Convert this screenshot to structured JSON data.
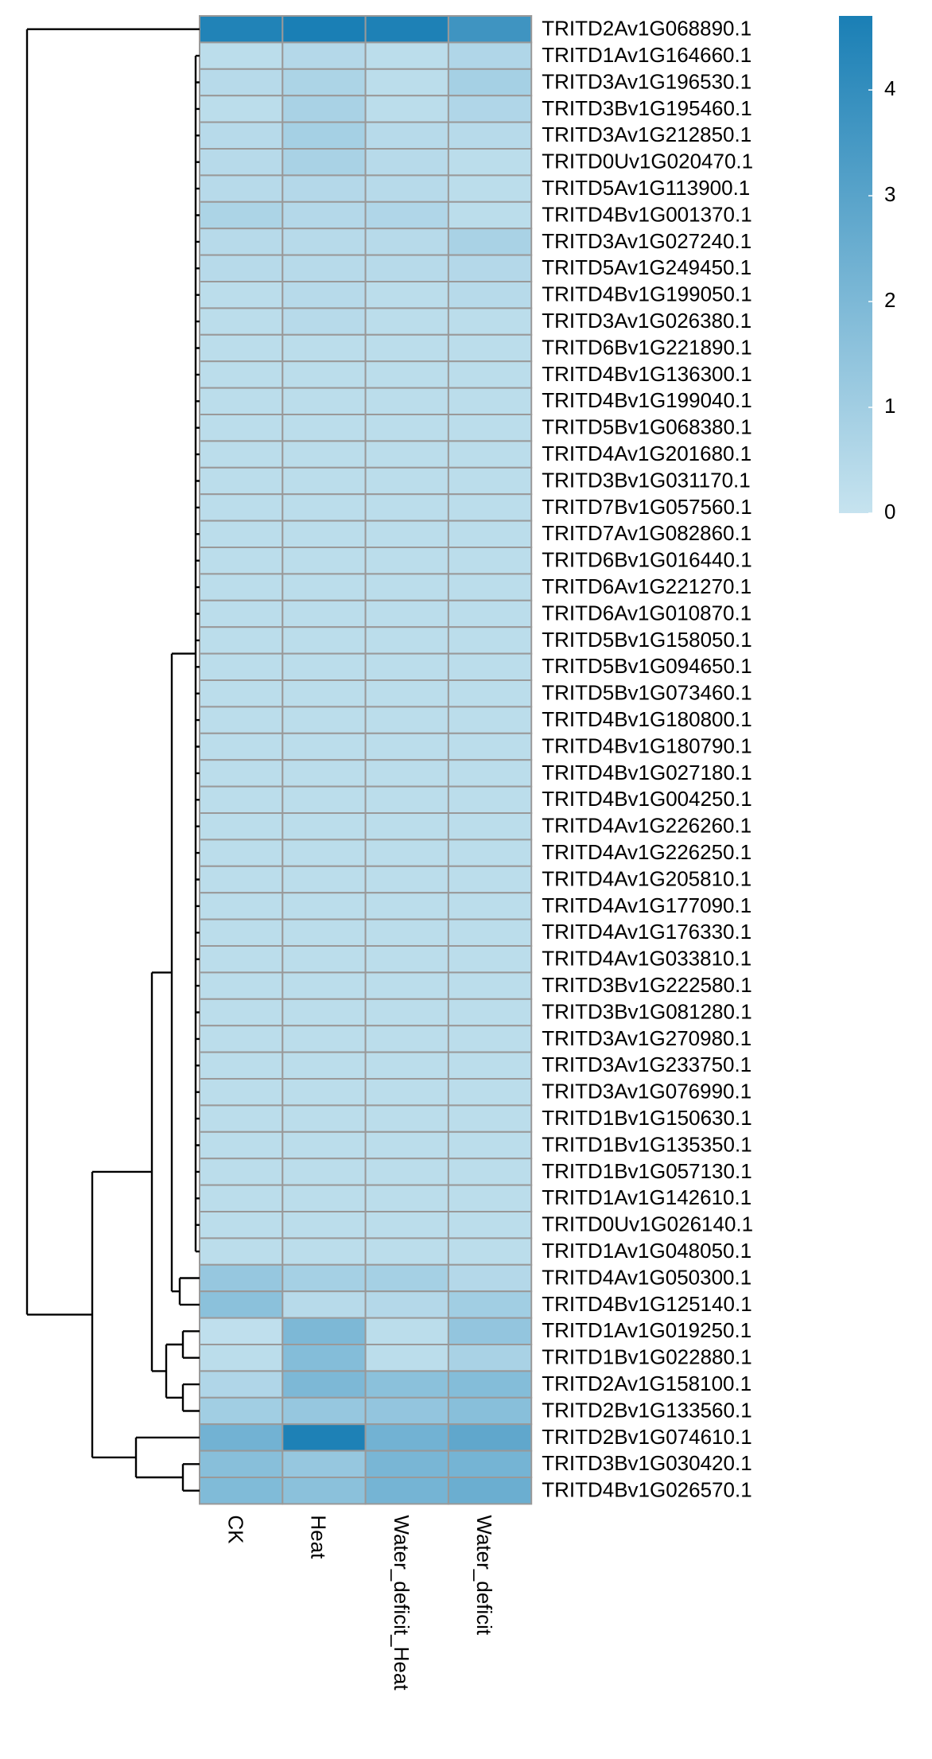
{
  "chart_data": {
    "type": "heatmap",
    "columns": [
      "CK",
      "Heat",
      "Water_deficit_Heat",
      "Water_deficit"
    ],
    "rows": [
      "TRITD2Av1G068890.1",
      "TRITD1Av1G164660.1",
      "TRITD3Av1G196530.1",
      "TRITD3Bv1G195460.1",
      "TRITD3Av1G212850.1",
      "TRITD0Uv1G020470.1",
      "TRITD5Av1G113900.1",
      "TRITD4Bv1G001370.1",
      "TRITD3Av1G027240.1",
      "TRITD5Av1G249450.1",
      "TRITD4Bv1G199050.1",
      "TRITD3Av1G026380.1",
      "TRITD6Bv1G221890.1",
      "TRITD4Bv1G136300.1",
      "TRITD4Bv1G199040.1",
      "TRITD5Bv1G068380.1",
      "TRITD4Av1G201680.1",
      "TRITD3Bv1G031170.1",
      "TRITD7Bv1G057560.1",
      "TRITD7Av1G082860.1",
      "TRITD6Bv1G016440.1",
      "TRITD6Av1G221270.1",
      "TRITD6Av1G010870.1",
      "TRITD5Bv1G158050.1",
      "TRITD5Bv1G094650.1",
      "TRITD5Bv1G073460.1",
      "TRITD4Bv1G180800.1",
      "TRITD4Bv1G180790.1",
      "TRITD4Bv1G027180.1",
      "TRITD4Bv1G004250.1",
      "TRITD4Av1G226260.1",
      "TRITD4Av1G226250.1",
      "TRITD4Av1G205810.1",
      "TRITD4Av1G177090.1",
      "TRITD4Av1G176330.1",
      "TRITD4Av1G033810.1",
      "TRITD3Bv1G222580.1",
      "TRITD3Bv1G081280.1",
      "TRITD3Av1G270980.1",
      "TRITD3Av1G233750.1",
      "TRITD3Av1G076990.1",
      "TRITD1Bv1G150630.1",
      "TRITD1Bv1G135350.1",
      "TRITD1Bv1G057130.1",
      "TRITD1Av1G142610.1",
      "TRITD0Uv1G026140.1",
      "TRITD1Av1G048050.1",
      "TRITD4Av1G050300.1",
      "TRITD4Bv1G125140.1",
      "TRITD1Av1G019250.1",
      "TRITD1Bv1G022880.1",
      "TRITD2Av1G158100.1",
      "TRITD2Bv1G133560.1",
      "TRITD2Bv1G074610.1",
      "TRITD3Bv1G030420.1",
      "TRITD4Bv1G026570.1"
    ],
    "values": [
      [
        4.5,
        4.7,
        4.6,
        3.7
      ],
      [
        0.3,
        0.5,
        0.3,
        0.6
      ],
      [
        0.4,
        0.7,
        0.3,
        0.9
      ],
      [
        0.3,
        0.8,
        0.3,
        0.6
      ],
      [
        0.4,
        0.9,
        0.4,
        0.4
      ],
      [
        0.4,
        0.8,
        0.4,
        0.3
      ],
      [
        0.4,
        0.5,
        0.4,
        0.3
      ],
      [
        0.7,
        0.5,
        0.6,
        0.3
      ],
      [
        0.4,
        0.4,
        0.4,
        0.8
      ],
      [
        0.4,
        0.4,
        0.4,
        0.5
      ],
      [
        0.3,
        0.4,
        0.3,
        0.4
      ],
      [
        0.3,
        0.4,
        0.3,
        0.3
      ],
      [
        0.3,
        0.3,
        0.3,
        0.3
      ],
      [
        0.3,
        0.3,
        0.3,
        0.3
      ],
      [
        0.3,
        0.3,
        0.3,
        0.3
      ],
      [
        0.3,
        0.3,
        0.3,
        0.3
      ],
      [
        0.3,
        0.3,
        0.3,
        0.3
      ],
      [
        0.3,
        0.3,
        0.3,
        0.3
      ],
      [
        0.3,
        0.3,
        0.3,
        0.3
      ],
      [
        0.3,
        0.3,
        0.3,
        0.3
      ],
      [
        0.3,
        0.3,
        0.3,
        0.3
      ],
      [
        0.3,
        0.3,
        0.3,
        0.3
      ],
      [
        0.3,
        0.3,
        0.3,
        0.3
      ],
      [
        0.3,
        0.3,
        0.3,
        0.3
      ],
      [
        0.3,
        0.3,
        0.3,
        0.3
      ],
      [
        0.3,
        0.3,
        0.3,
        0.3
      ],
      [
        0.3,
        0.3,
        0.3,
        0.3
      ],
      [
        0.3,
        0.3,
        0.3,
        0.3
      ],
      [
        0.3,
        0.3,
        0.3,
        0.3
      ],
      [
        0.3,
        0.3,
        0.3,
        0.3
      ],
      [
        0.3,
        0.3,
        0.3,
        0.3
      ],
      [
        0.3,
        0.3,
        0.3,
        0.3
      ],
      [
        0.3,
        0.3,
        0.3,
        0.3
      ],
      [
        0.3,
        0.3,
        0.3,
        0.3
      ],
      [
        0.3,
        0.3,
        0.3,
        0.3
      ],
      [
        0.3,
        0.3,
        0.3,
        0.3
      ],
      [
        0.3,
        0.3,
        0.3,
        0.3
      ],
      [
        0.3,
        0.3,
        0.3,
        0.3
      ],
      [
        0.3,
        0.3,
        0.3,
        0.3
      ],
      [
        0.3,
        0.3,
        0.3,
        0.3
      ],
      [
        0.3,
        0.3,
        0.3,
        0.3
      ],
      [
        0.3,
        0.3,
        0.3,
        0.3
      ],
      [
        0.3,
        0.3,
        0.3,
        0.3
      ],
      [
        0.3,
        0.3,
        0.3,
        0.3
      ],
      [
        0.3,
        0.3,
        0.3,
        0.3
      ],
      [
        0.3,
        0.3,
        0.3,
        0.3
      ],
      [
        0.3,
        0.3,
        0.3,
        0.3
      ],
      [
        1.3,
        0.9,
        0.9,
        0.5
      ],
      [
        1.6,
        0.4,
        0.5,
        1.0
      ],
      [
        0.2,
        2.0,
        0.3,
        1.4
      ],
      [
        0.3,
        1.8,
        0.3,
        0.8
      ],
      [
        0.6,
        2.0,
        1.6,
        1.8
      ],
      [
        1.0,
        1.3,
        1.4,
        1.7
      ],
      [
        2.3,
        4.6,
        2.3,
        2.8
      ],
      [
        1.7,
        1.3,
        2.1,
        2.2
      ],
      [
        1.9,
        1.6,
        2.2,
        2.5
      ]
    ],
    "zlim": [
      0,
      4.7
    ],
    "zticks": [
      0,
      1,
      2,
      3,
      4
    ],
    "colors": [
      "#c6e3ef",
      "#1a7fb5"
    ],
    "cell_border": "#999999"
  }
}
